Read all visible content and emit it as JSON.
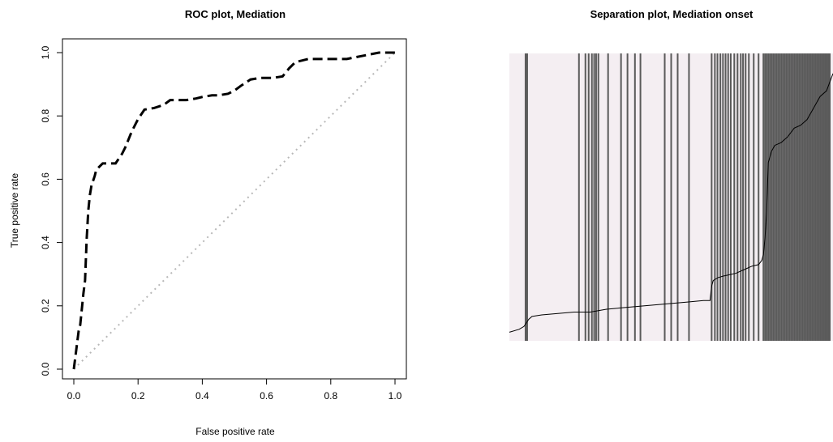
{
  "chart_data": [
    {
      "type": "line",
      "title": "ROC plot, Mediation",
      "xlabel": "False positive rate",
      "ylabel": "True positive rate",
      "xlim": [
        0,
        1
      ],
      "ylim": [
        0,
        1
      ],
      "xticks": [
        "0.0",
        "0.2",
        "0.4",
        "0.6",
        "0.8",
        "1.0"
      ],
      "yticks": [
        "0.0",
        "0.2",
        "0.4",
        "0.6",
        "0.8",
        "1.0"
      ],
      "series": [
        {
          "style": "dashed-black",
          "x": [
            0,
            0.005,
            0.01,
            0.015,
            0.02,
            0.025,
            0.03,
            0.035,
            0.04,
            0.045,
            0.05,
            0.055,
            0.065,
            0.07,
            0.09,
            0.1,
            0.12,
            0.13,
            0.15,
            0.16,
            0.18,
            0.2,
            0.22,
            0.25,
            0.28,
            0.3,
            0.32,
            0.35,
            0.38,
            0.4,
            0.43,
            0.45,
            0.48,
            0.5,
            0.52,
            0.55,
            0.58,
            0.62,
            0.65,
            0.67,
            0.69,
            0.71,
            0.73,
            0.78,
            0.85,
            0.95,
            1.0
          ],
          "y": [
            0,
            0.04,
            0.08,
            0.12,
            0.14,
            0.19,
            0.24,
            0.28,
            0.41,
            0.5,
            0.55,
            0.58,
            0.61,
            0.63,
            0.65,
            0.65,
            0.65,
            0.65,
            0.68,
            0.7,
            0.75,
            0.79,
            0.82,
            0.825,
            0.835,
            0.85,
            0.85,
            0.85,
            0.855,
            0.86,
            0.865,
            0.865,
            0.87,
            0.88,
            0.895,
            0.915,
            0.92,
            0.92,
            0.925,
            0.95,
            0.97,
            0.975,
            0.98,
            0.98,
            0.98,
            1.0,
            1.0
          ]
        },
        {
          "style": "dotted-gray",
          "x": [
            0,
            1
          ],
          "y": [
            0,
            1
          ]
        }
      ]
    },
    {
      "type": "separation",
      "title": "Separation plot, Mediation onset",
      "event_positions": [
        0.05,
        0.055,
        0.215,
        0.235,
        0.245,
        0.255,
        0.262,
        0.268,
        0.275,
        0.305,
        0.345,
        0.365,
        0.388,
        0.405,
        0.48,
        0.5,
        0.52,
        0.555,
        0.625,
        0.635,
        0.643,
        0.652,
        0.66,
        0.668,
        0.676,
        0.684,
        0.695,
        0.705,
        0.715,
        0.722,
        0.73,
        0.74,
        0.755,
        0.77,
        0.785,
        0.79,
        0.795,
        0.8,
        0.805,
        0.81,
        0.815,
        0.82,
        0.825,
        0.83,
        0.835,
        0.84,
        0.845,
        0.85,
        0.855,
        0.86,
        0.865,
        0.87,
        0.875,
        0.88,
        0.885,
        0.89,
        0.895,
        0.9,
        0.905,
        0.91,
        0.915,
        0.92,
        0.925,
        0.93,
        0.935,
        0.94,
        0.945,
        0.95,
        0.955,
        0.96,
        0.965,
        0.97,
        0.975,
        0.98,
        0.985,
        0.99
      ],
      "probability_curve": {
        "x": [
          0,
          0.03,
          0.045,
          0.06,
          0.07,
          0.1,
          0.15,
          0.2,
          0.25,
          0.3,
          0.35,
          0.4,
          0.45,
          0.5,
          0.55,
          0.6,
          0.62,
          0.625,
          0.63,
          0.645,
          0.66,
          0.68,
          0.7,
          0.73,
          0.75,
          0.77,
          0.78,
          0.785,
          0.79,
          0.795,
          0.8,
          0.81,
          0.82,
          0.84,
          0.86,
          0.88,
          0.9,
          0.92,
          0.94,
          0.96,
          0.98,
          1.0
        ],
        "y": [
          0.03,
          0.04,
          0.05,
          0.075,
          0.085,
          0.09,
          0.095,
          0.1,
          0.1,
          0.11,
          0.115,
          0.12,
          0.125,
          0.13,
          0.135,
          0.14,
          0.14,
          0.19,
          0.21,
          0.22,
          0.225,
          0.23,
          0.235,
          0.25,
          0.26,
          0.265,
          0.28,
          0.3,
          0.36,
          0.45,
          0.62,
          0.66,
          0.68,
          0.69,
          0.71,
          0.74,
          0.75,
          0.77,
          0.81,
          0.85,
          0.87,
          0.93
        ]
      }
    }
  ]
}
